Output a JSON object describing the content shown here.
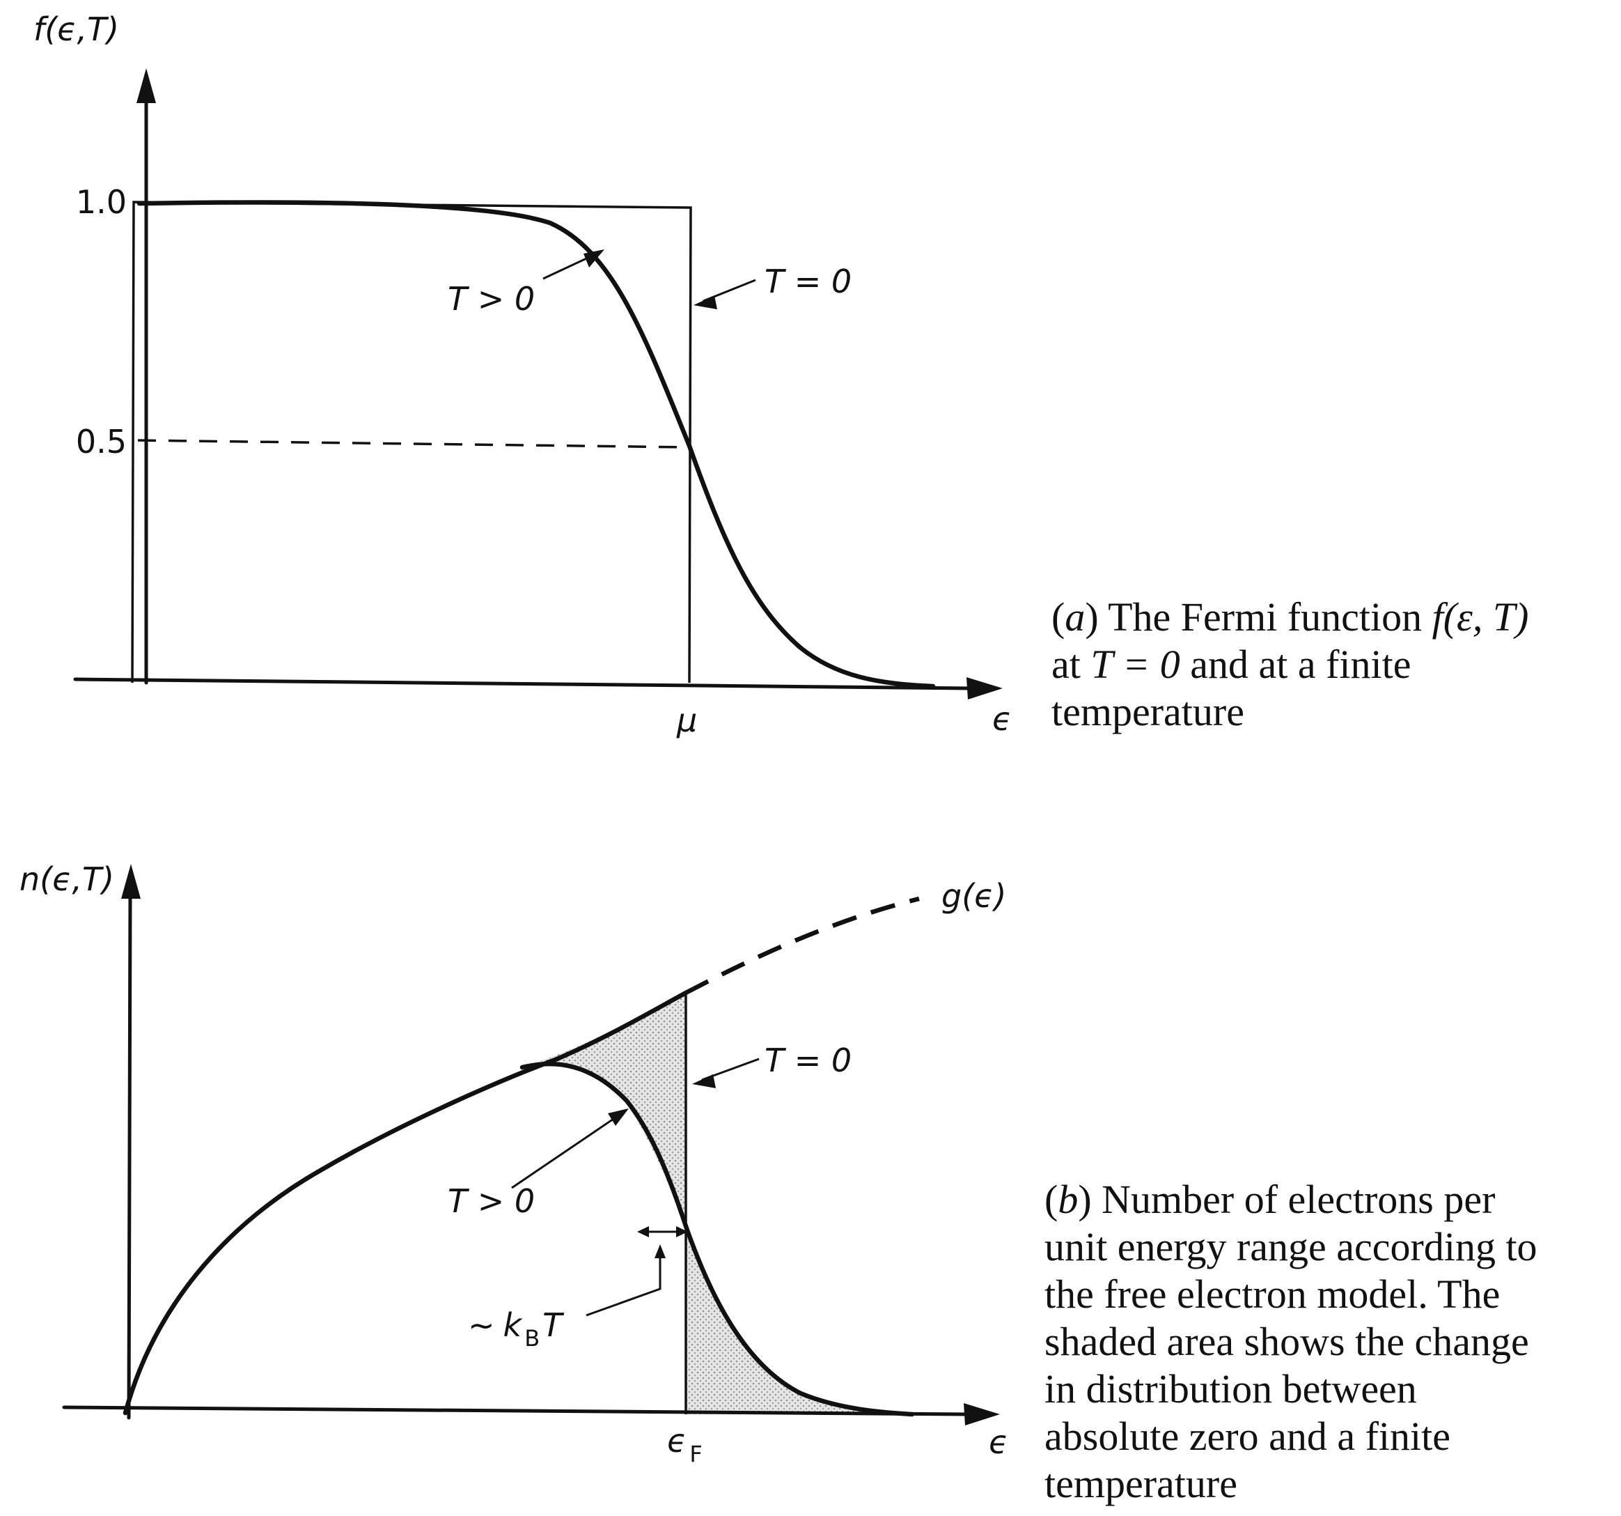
{
  "panel_a": {
    "y_axis_label": "f(ϵ,T)",
    "y_tick_1": "1.0",
    "y_tick_half": "0.5",
    "x_tick_mu": "μ",
    "x_axis_label": "ϵ",
    "label_t_finite": "T > 0",
    "label_t_zero": "T = 0",
    "caption": {
      "letter": "a",
      "line1": "The Fermi function",
      "func": "f(ε, T)",
      "line2_pre": "at",
      "line2_math": "T = 0",
      "line2_post": "and at a finite",
      "line3": "temperature"
    }
  },
  "panel_b": {
    "y_axis_label": "n(ϵ,T)",
    "g_label": "g(ϵ)",
    "x_tick_ef": "ϵ",
    "x_tick_ef_sub": "F",
    "x_axis_label": "ϵ",
    "label_t_zero": "T = 0",
    "label_t_finite": "T > 0",
    "kbt_prefix": "~",
    "kbt_k": "k",
    "kbt_sub": "B",
    "kbt_t": "T",
    "caption": {
      "letter": "b",
      "line1": "Number of electrons per",
      "line2": "unit energy range according to",
      "line3": "the free electron model. The",
      "line4": "shaded area shows the change",
      "line5": "in distribution between",
      "line6": "absolute zero and a finite",
      "line7": "temperature"
    }
  },
  "colors": {
    "ink": "#111111",
    "shade": "#e2e2e2"
  }
}
